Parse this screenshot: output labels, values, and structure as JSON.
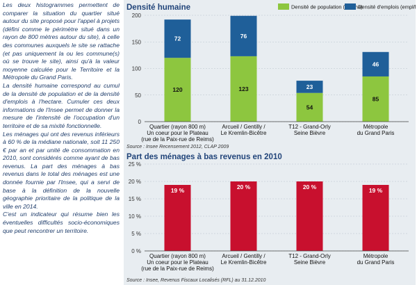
{
  "text": {
    "paragraphs": [
      "Les deux histogrammes permettent de comparer la situation du quartier situé autour du site proposé pour l'appel à projets (défini comme le périmètre situé dans un rayon de 800 mètres autour du site), à celle des communes auxquels le site se rattache (et pas uniquement la ou les commune(s) où se trouve le site), ainsi qu'à la valeur moyenne calculée pour le Territoire et la Métropole du Grand Paris.",
      "La densité humaine correspond au cumul de la densité de population et de la densité d'emplois à l'hectare. Cumuler ces deux informations de l'Insee permet de donner la mesure de l'intensité de l'occupation d'un territoire et de sa mixité fonctionnelle.",
      "Les ménages qui ont des revenus inférieurs à 60 % de la médiane nationale, soit 11 250 € par an et par unité de consommation en 2010, sont considérés comme ayant de bas revenus. La part des ménages à bas revenus dans le total des ménages est une donnée fournie par l'Insee, qui a servi de base à la définition de la nouvelle géographie prioritaire de la politique de la ville en 2014.",
      "C'est un indicateur qui résume bien les éventuelles difficultés socio-économiques que peut rencontrer un territoire."
    ]
  },
  "colors": {
    "population": "#8dc63f",
    "emplois": "#1f5f99",
    "menages": "#c8102e",
    "title": "#22457a"
  },
  "chart_data": [
    {
      "type": "bar",
      "stacked": true,
      "title": "Densité humaine",
      "categories": [
        [
          "Quartier (rayon 800 m)",
          "Un coeur pour le Plateau",
          "(rue de la Paix-rue de Reims)"
        ],
        [
          "Arcueil / Gentilly /",
          "Le Kremlin-Bicêtre"
        ],
        [
          "T12 - Grand-Orly",
          "Seine Bièvre"
        ],
        [
          "Métropole",
          "du Grand Paris"
        ]
      ],
      "series": [
        {
          "name": "Densité de population (hab/ha)",
          "values": [
            120,
            123,
            54,
            85
          ]
        },
        {
          "name": "Densité d'emplois (empl/ha)",
          "values": [
            72,
            76,
            23,
            46
          ]
        }
      ],
      "ylim": [
        0,
        200
      ],
      "yticks": [
        0,
        50,
        100,
        150,
        200
      ],
      "source": "Source : Insee Recensement 2012, CLAP 2009",
      "legend_position": "top-right"
    },
    {
      "type": "bar",
      "title": "Part des ménages à bas revenus en 2010",
      "categories": [
        [
          "Quartier (rayon 800 m)",
          "Un coeur pour le Plateau",
          "(rue de la Paix-rue de Reims)"
        ],
        [
          "Arcueil / Gentilly /",
          "Le Kremlin-Bicêtre"
        ],
        [
          "T12 - Grand-Orly",
          "Seine Bièvre"
        ],
        [
          "Métropole",
          "du Grand Paris"
        ]
      ],
      "values": [
        19,
        20,
        20,
        19
      ],
      "value_labels": [
        "19 %",
        "20 %",
        "20 %",
        "19 %"
      ],
      "ylim": [
        0,
        25
      ],
      "yticks": [
        0,
        5,
        10,
        15,
        20,
        25
      ],
      "tick_labels": [
        "0 %",
        "5 %",
        "10 %",
        "15 %",
        "20 %",
        "25 %"
      ],
      "source": "Source : Insee, Revenus Fiscaux Localisés (RFL) au 31.12.2010"
    }
  ]
}
